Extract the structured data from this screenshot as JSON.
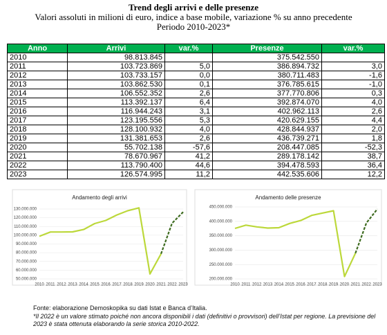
{
  "header": {
    "title": "Trend degli arrivi e delle presenze",
    "subtitle": "Valori assoluti in milioni di euro, indice a base mobile, variazione % su anno precedente",
    "period": "Periodo 2010-2023*"
  },
  "table": {
    "columns": [
      "Anno",
      "Arrivi",
      "var.%",
      "Presenze",
      "var.%"
    ],
    "rows": [
      [
        "2010",
        "98.813.845",
        null,
        "375.542.550",
        null
      ],
      [
        "2011",
        "103.723.869",
        "5,0",
        "386.894.732",
        "3,0"
      ],
      [
        "2012",
        "103.733.157",
        "0,0",
        "380.711.483",
        "-1,6"
      ],
      [
        "2013",
        "103.862.530",
        "0,1",
        "376.785.615",
        "-1,0"
      ],
      [
        "2014",
        "106.552.352",
        "2,6",
        "377.770.806",
        "0,3"
      ],
      [
        "2015",
        "113.392.137",
        "6,4",
        "392.874.070",
        "4,0"
      ],
      [
        "2016",
        "116.944.243",
        "3,1",
        "402.962.113",
        "2,6"
      ],
      [
        "2017",
        "123.195.556",
        "5,3",
        "420.629.155",
        "4,4"
      ],
      [
        "2018",
        "128.100.932",
        "4,0",
        "428.844.937",
        "2,0"
      ],
      [
        "2019",
        "131.381.653",
        "2,6",
        "436.739.271",
        "1,8"
      ],
      [
        "2020",
        "55.702.138",
        "-57,6",
        "208.447.085",
        "-52,3"
      ],
      [
        "2021",
        "78.670.967",
        "41,2",
        "289.178.142",
        "38,7"
      ],
      [
        "2022",
        "113.790.400",
        "44,6",
        "394.478.593",
        "36,4"
      ],
      [
        "2023",
        "126.574.995",
        "11,2",
        "442.535.606",
        "12,2"
      ]
    ]
  },
  "chart_data": [
    {
      "type": "line",
      "title": "Andamento degli arrivi",
      "categories": [
        "2010",
        "2011",
        "2012",
        "2013",
        "2014",
        "2015",
        "2016",
        "2017",
        "2018",
        "2019",
        "2020",
        "2021",
        "2022",
        "2023"
      ],
      "series": [
        {
          "color": "#bcd83a",
          "values": [
            98813845,
            103723869,
            103733157,
            103862530,
            106552352,
            113392137,
            116944243,
            123195556,
            128100932,
            131381653,
            55702138,
            78670967,
            null,
            null
          ]
        },
        {
          "color": "#3d6b1f",
          "dashed": true,
          "values": [
            null,
            null,
            null,
            null,
            null,
            null,
            null,
            null,
            null,
            null,
            null,
            78670967,
            113790400,
            126574995
          ]
        }
      ],
      "ylim": [
        50000000,
        130000000
      ],
      "yticks": [
        {
          "value": 50000000,
          "label": "50.000.000"
        },
        {
          "value": 60000000,
          "label": "60.000.000"
        },
        {
          "value": 70000000,
          "label": "70.000.000"
        },
        {
          "value": 80000000,
          "label": "80.000.000"
        },
        {
          "value": 90000000,
          "label": "90.000.000"
        },
        {
          "value": 100000000,
          "label": "100.000.000"
        },
        {
          "value": 110000000,
          "label": "110.000.000"
        },
        {
          "value": 120000000,
          "label": "120.000.000"
        },
        {
          "value": 130000000,
          "label": "130.000.000"
        }
      ]
    },
    {
      "type": "line",
      "title": "Andamento delle presenze",
      "categories": [
        "2010",
        "2011",
        "2012",
        "2013",
        "2014",
        "2015",
        "2016",
        "2017",
        "2018",
        "2019",
        "2020",
        "2021",
        "2022",
        "2023"
      ],
      "series": [
        {
          "color": "#bcd83a",
          "values": [
            375542550,
            386894732,
            380711483,
            376785615,
            377770806,
            392874070,
            402962113,
            420629155,
            428844937,
            436739271,
            208447085,
            289178142,
            null,
            null
          ]
        },
        {
          "color": "#3d6b1f",
          "dashed": true,
          "values": [
            null,
            null,
            null,
            null,
            null,
            null,
            null,
            null,
            null,
            null,
            null,
            289178142,
            394478593,
            442535606
          ]
        }
      ],
      "ylim": [
        200000000,
        450000000
      ],
      "yticks": [
        {
          "value": 200000000,
          "label": "200.000.000"
        },
        {
          "value": 250000000,
          "label": "250.000.000"
        },
        {
          "value": 300000000,
          "label": "300.000.000"
        },
        {
          "value": 350000000,
          "label": "350.000.000"
        },
        {
          "value": 400000000,
          "label": "400.000.000"
        },
        {
          "value": 450000000,
          "label": "450.000.000"
        }
      ]
    }
  ],
  "footer": {
    "source": "Fonte: elaborazione Demoskopika su dati Istat e Banca d’Italia.",
    "note": "*Il 2022 è un valore stimato poiché non ancora disponibili i dati (definitivi o provvisori) dell’Istat per regione. La previsione del 2023 è stata ottenuta elaborando la serie storica 2010-2022."
  }
}
